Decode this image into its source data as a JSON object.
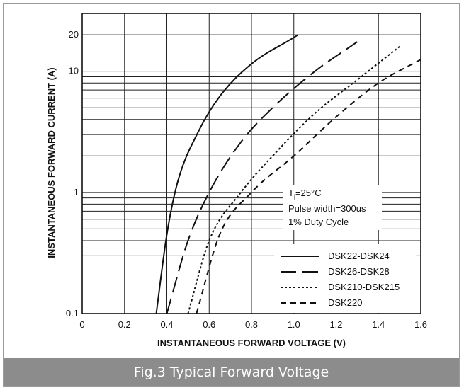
{
  "chart_data": {
    "type": "line",
    "title": "",
    "xlabel": "INSTANTANEOUS FORWARD VOLTAGE (V)",
    "ylabel": "INSTANTANEOUS FORWARD CURRENT (A)",
    "xlim": [
      0,
      1.6
    ],
    "ylim": [
      0.1,
      30
    ],
    "y_scale": "log",
    "grid": true,
    "x_ticks": [
      "0",
      "0.2",
      "0.4",
      "0.6",
      "0.8",
      "1.0",
      "1.2",
      "1.4",
      "1.6"
    ],
    "y_ticks": [
      "0.1",
      "1",
      "10",
      "20"
    ],
    "legend_position": "bottom-right",
    "annotation": {
      "temp_main": "T",
      "temp_sub": "j",
      "temp_rest": "=25°C",
      "pulse": "Pulse width=300us",
      "duty": "1% Duty Cycle"
    },
    "series": [
      {
        "name": "DSK22-DSK24",
        "style": "solid",
        "x": [
          0.35,
          0.4,
          0.45,
          0.55,
          0.65,
          0.8,
          1.0,
          1.02
        ],
        "y": [
          0.1,
          0.45,
          1.2,
          3.2,
          6.2,
          11.5,
          19,
          20
        ]
      },
      {
        "name": "DSK26-DSK28",
        "style": "long-dash",
        "x": [
          0.4,
          0.5,
          0.6,
          0.75,
          0.9,
          1.1,
          1.3
        ],
        "y": [
          0.1,
          0.4,
          1.0,
          2.6,
          5.0,
          10.0,
          17.5
        ]
      },
      {
        "name": "DSK210-DSK215",
        "style": "dotted",
        "x": [
          0.5,
          0.6,
          0.75,
          0.9,
          1.1,
          1.3,
          1.5
        ],
        "y": [
          0.1,
          0.4,
          1.0,
          2.0,
          4.5,
          8.5,
          16
        ]
      },
      {
        "name": "DSK220",
        "style": "short-dash",
        "x": [
          0.54,
          0.65,
          0.8,
          1.0,
          1.2,
          1.4,
          1.6
        ],
        "y": [
          0.1,
          0.45,
          1.0,
          2.0,
          4.2,
          8.0,
          12.5
        ]
      }
    ]
  },
  "caption": "Fig.3 Typical Forward Voltage"
}
